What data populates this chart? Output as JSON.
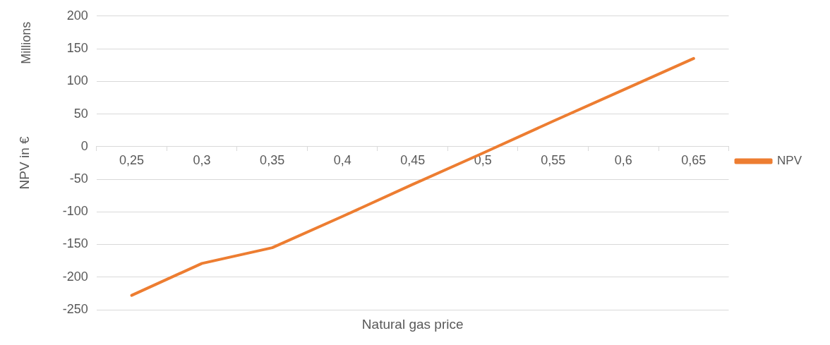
{
  "chart_data": {
    "type": "line",
    "xlabel": "Natural gas price",
    "ylabel": "NPV in €",
    "annotations": [
      "Millions"
    ],
    "categories": [
      "0,25",
      "0,3",
      "0,35",
      "0,4",
      "0,45",
      "0,5",
      "0,55",
      "0,6",
      "0,65"
    ],
    "series": [
      {
        "name": "NPV",
        "color": "#ed7d31",
        "values": [
          -228,
          -179,
          -155,
          -107,
          -58,
          -10,
          39,
          87,
          135
        ]
      }
    ],
    "ylim": [
      -250,
      200
    ],
    "yticks": [
      -250,
      -200,
      -150,
      -100,
      -50,
      0,
      50,
      100,
      150,
      200
    ],
    "grid": "y",
    "legend": "right",
    "marker": "none",
    "line_style": "solid"
  }
}
